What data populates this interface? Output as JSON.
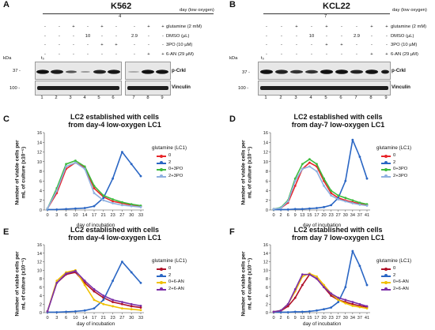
{
  "blots": [
    {
      "panel": "A",
      "cell_line": "K562",
      "day_value": "4",
      "row_labels": [
        "day (low oxygen)",
        "glutamine (2 mM)",
        "DMSO (µL)",
        "3PO (10 µM)",
        "6-AN (29 µM)"
      ],
      "glutamine": [
        "-",
        "-",
        "+",
        "-",
        "+",
        "-",
        "-",
        "+",
        "+"
      ],
      "dmso": [
        "-",
        "-",
        "-",
        "10",
        "-",
        "-",
        "2.9",
        "-",
        "-"
      ],
      "threepo": [
        "-",
        "-",
        "-",
        "-",
        "+",
        "+",
        "-",
        "-",
        "-"
      ],
      "sixan": [
        "-",
        "-",
        "-",
        "-",
        "-",
        "-",
        "-",
        "+",
        "+"
      ],
      "kda_label": "kDa",
      "t0": "t₀",
      "mw": [
        "37 -",
        "100 -"
      ],
      "bands": [
        "p-CrkI",
        "Vinculin"
      ],
      "lanes": [
        "1",
        "2",
        "3",
        "4",
        "5",
        "6",
        "7",
        "8",
        "9"
      ]
    },
    {
      "panel": "B",
      "cell_line": "KCL22",
      "day_value": "7",
      "row_labels": [
        "day (low oxygen)",
        "glutamine (2 mM)",
        "DMSO (µL)",
        "3PO (10 µM)",
        "6-AN (29 µM)"
      ],
      "glutamine": [
        "-",
        "-",
        "+",
        "-",
        "+",
        "-",
        "-",
        "+",
        "+"
      ],
      "dmso": [
        "-",
        "-",
        "-",
        "10",
        "-",
        "-",
        "2.9",
        "-",
        "-"
      ],
      "threepo": [
        "-",
        "-",
        "-",
        "-",
        "+",
        "+",
        "-",
        "-",
        "-"
      ],
      "sixan": [
        "-",
        "-",
        "-",
        "-",
        "-",
        "-",
        "-",
        "+",
        "+"
      ],
      "kda_label": "kDa",
      "t0": "t₀",
      "mw": [
        "37 -",
        "100 -"
      ],
      "bands": [
        "p-CrkI",
        "Vinculin"
      ],
      "lanes": [
        "1",
        "2",
        "3",
        "4",
        "5",
        "6",
        "7",
        "8",
        "9"
      ]
    }
  ],
  "chart_data": [
    {
      "panel": "C",
      "type": "line",
      "title": [
        "LC2 established with cells",
        "from day-4 low-oxygen LC1"
      ],
      "ylabel": [
        "Number of viable cells per",
        "mL of culture (x10⁻⁵)"
      ],
      "xlabel": "day of incubation",
      "legend_title": "glutamine (LC1)",
      "xticks": [
        "0",
        "3",
        "6",
        "10",
        "14",
        "17",
        "21",
        "23",
        "27",
        "30",
        "33"
      ],
      "yticks": [
        "0",
        "2",
        "4",
        "6",
        "8",
        "10",
        "12",
        "14",
        "16"
      ],
      "ylim": [
        0,
        16
      ],
      "series": [
        {
          "name": "0",
          "color": "#e8262a",
          "values": [
            0.3,
            3.5,
            8.5,
            9.8,
            8.8,
            4.5,
            2.7,
            1.8,
            1.4,
            1.0,
            0.8
          ]
        },
        {
          "name": "2",
          "color": "#2a66c4",
          "values": [
            0.1,
            0.1,
            0.2,
            0.3,
            0.4,
            0.8,
            2.5,
            6.5,
            12.0,
            9.5,
            7.0
          ]
        },
        {
          "name": "0+3PO",
          "color": "#3dbb3d",
          "values": [
            0.3,
            4.5,
            9.5,
            10.2,
            9.0,
            5.0,
            3.0,
            2.2,
            1.6,
            1.2,
            0.9
          ]
        },
        {
          "name": "2+3PO",
          "color": "#8fb0e0",
          "values": [
            0.3,
            4.0,
            9.0,
            9.8,
            8.5,
            3.5,
            2.0,
            1.4,
            1.0,
            0.8,
            0.6
          ]
        }
      ]
    },
    {
      "panel": "D",
      "type": "line",
      "title": [
        "LC2 established with cells",
        "from day-7 low-oxygen LC1"
      ],
      "ylabel": [
        "Number of viable cells per",
        "mL of culture (x10⁻⁵)"
      ],
      "xlabel": "day of incubation",
      "legend_title": "glutamine (LC1)",
      "xticks": [
        "0",
        "2",
        "6",
        "9",
        "13",
        "15",
        "17",
        "20",
        "23",
        "27",
        "30",
        "34",
        "37",
        "41"
      ],
      "yticks": [
        "0",
        "2",
        "4",
        "6",
        "8",
        "10",
        "12",
        "14",
        "16"
      ],
      "ylim": [
        0,
        16
      ],
      "series": [
        {
          "name": "0",
          "color": "#e8262a",
          "values": [
            0.2,
            0.4,
            1.5,
            5.0,
            8.5,
            9.8,
            9.0,
            6.0,
            3.5,
            2.5,
            2.0,
            1.6,
            1.3,
            1.0
          ]
        },
        {
          "name": "2",
          "color": "#2a66c4",
          "values": [
            0.1,
            0.1,
            0.1,
            0.2,
            0.2,
            0.3,
            0.4,
            0.6,
            1.0,
            2.5,
            6.0,
            14.5,
            11.0,
            6.5
          ]
        },
        {
          "name": "0+3PO",
          "color": "#3dbb3d",
          "values": [
            0.2,
            0.5,
            2.0,
            6.5,
            9.5,
            10.5,
            9.5,
            6.5,
            4.0,
            3.0,
            2.5,
            2.0,
            1.5,
            1.2
          ]
        },
        {
          "name": "2+3PO",
          "color": "#8fb0e0",
          "values": [
            0.2,
            0.4,
            1.8,
            6.0,
            8.5,
            9.0,
            8.0,
            5.0,
            3.0,
            2.2,
            1.8,
            1.4,
            1.1,
            0.9
          ]
        }
      ]
    },
    {
      "panel": "E",
      "type": "line",
      "title": [
        "LC2 established with cells",
        "from day-4 low-oxygen LC1"
      ],
      "ylabel": [
        "Number of viable cells per",
        "mL of culture (x10⁻⁵)"
      ],
      "xlabel": "day of incubation",
      "legend_title": "glutamine (LC1)",
      "xticks": [
        "0",
        "3",
        "6",
        "10",
        "14",
        "17",
        "21",
        "23",
        "27",
        "30",
        "33"
      ],
      "yticks": [
        "0",
        "2",
        "4",
        "6",
        "8",
        "10",
        "12",
        "14",
        "16"
      ],
      "ylim": [
        0,
        16
      ],
      "series": [
        {
          "name": "0",
          "color": "#b01028",
          "values": [
            0.3,
            7.0,
            9.0,
            9.5,
            7.0,
            5.0,
            3.5,
            2.5,
            2.0,
            1.5,
            1.2
          ]
        },
        {
          "name": "2",
          "color": "#2a66c4",
          "values": [
            0.1,
            0.1,
            0.2,
            0.3,
            0.5,
            1.0,
            3.0,
            7.5,
            12.0,
            9.5,
            7.0
          ]
        },
        {
          "name": "0+6-AN",
          "color": "#f0c000",
          "values": [
            0.3,
            7.5,
            9.5,
            10.0,
            6.5,
            3.0,
            2.0,
            1.5,
            1.0,
            0.8,
            0.6
          ]
        },
        {
          "name": "2+6-AN",
          "color": "#7a2ea8",
          "values": [
            0.3,
            7.0,
            9.2,
            9.8,
            7.5,
            5.5,
            4.0,
            3.0,
            2.5,
            2.0,
            1.6
          ]
        }
      ]
    },
    {
      "panel": "F",
      "type": "line",
      "title": [
        "LC2 established with cells",
        "from day 7 low-oxygen LC1"
      ],
      "ylabel": [
        "Number of viable cells per",
        "mL of culture (x10⁻⁵)"
      ],
      "xlabel": "day of incubation",
      "legend_title": "glutamine (LC1)",
      "xticks": [
        "0",
        "2",
        "6",
        "9",
        "13",
        "15",
        "17",
        "20",
        "23",
        "27",
        "30",
        "34",
        "37",
        "41"
      ],
      "yticks": [
        "0",
        "2",
        "4",
        "6",
        "8",
        "10",
        "12",
        "14",
        "16"
      ],
      "ylim": [
        0,
        16
      ],
      "series": [
        {
          "name": "0",
          "color": "#b01028",
          "values": [
            0.2,
            0.4,
            1.5,
            3.5,
            6.5,
            9.0,
            8.0,
            6.0,
            4.0,
            3.0,
            2.5,
            2.0,
            1.6,
            1.3
          ]
        },
        {
          "name": "2",
          "color": "#2a66c4",
          "values": [
            0.1,
            0.1,
            0.1,
            0.2,
            0.2,
            0.3,
            0.5,
            0.8,
            1.2,
            2.5,
            6.0,
            14.5,
            11.0,
            6.5
          ]
        },
        {
          "name": "0+6-AN",
          "color": "#f0c000",
          "values": [
            0.2,
            0.5,
            2.0,
            5.0,
            8.5,
            9.2,
            8.5,
            6.5,
            4.5,
            3.0,
            2.2,
            1.6,
            1.3,
            1.0
          ]
        },
        {
          "name": "2+6-AN",
          "color": "#7a2ea8",
          "values": [
            0.2,
            0.5,
            2.0,
            5.5,
            9.0,
            9.0,
            8.0,
            6.0,
            4.5,
            3.5,
            3.0,
            2.5,
            2.0,
            1.5
          ]
        }
      ]
    }
  ]
}
